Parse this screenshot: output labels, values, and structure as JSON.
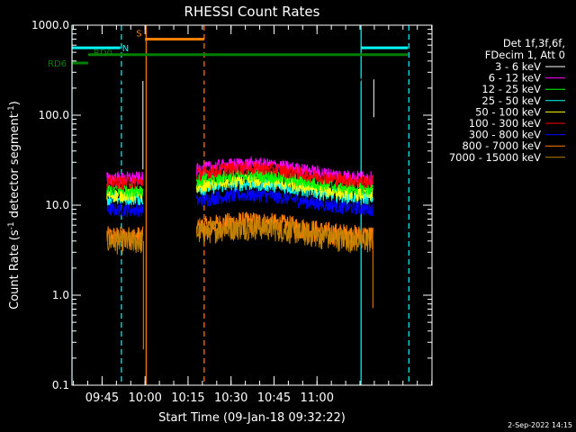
{
  "chart_data": {
    "type": "line",
    "title": "RHESSI Count Rates",
    "xlabel": "Start Time (09-Jan-18 09:32:22)",
    "ylabel_main": "Count Rate (s",
    "ylabel_sup1": "-1",
    "ylabel_mid": " detector segment",
    "ylabel_sup2": "-1",
    "ylabel_end": ")",
    "yscale": "log",
    "ylim": [
      0.1,
      1000
    ],
    "xlim_minutes": [
      0,
      67
    ],
    "x_ticks": [
      {
        "m": 5.6,
        "label": "09:45"
      },
      {
        "m": 13.6,
        "label": "10:00"
      },
      {
        "m": 21.6,
        "label": "10:15"
      },
      {
        "m": 29.6,
        "label": "10:30"
      },
      {
        "m": 37.6,
        "label": "10:45"
      },
      {
        "m": 45.6,
        "label": "11:00"
      }
    ],
    "y_ticks": [
      {
        "v": 0.1,
        "label": "0.1"
      },
      {
        "v": 1,
        "label": "1.0"
      },
      {
        "v": 10,
        "label": "10.0"
      },
      {
        "v": 100,
        "label": "100.0"
      },
      {
        "v": 1000,
        "label": "1000.0"
      }
    ],
    "legend_header": [
      "Det 1f,3f,6f,",
      "FDecim 1, Att 0"
    ],
    "series": [
      {
        "name": "3 - 6 keV",
        "color": "#000000",
        "level": 250
      },
      {
        "name": "6 - 12 keV",
        "color": "#ff00ff",
        "level": 20
      },
      {
        "name": "12 - 25 keV",
        "color": "#00ff00",
        "level": 15
      },
      {
        "name": "25 - 50 keV",
        "color": "#00ffff",
        "level": 12
      },
      {
        "name": "50 - 100 keV",
        "color": "#ffff00",
        "level": 13
      },
      {
        "name": "100 - 300 keV",
        "color": "#ff0000",
        "level": 18
      },
      {
        "name": "300 - 800 keV",
        "color": "#0000ff",
        "level": 9
      },
      {
        "name": "800 - 7000 keV",
        "color": "#ff8000",
        "level": 4.5
      },
      {
        "name": "7000 - 15000 keV",
        "color": "#c08000",
        "level": 4
      }
    ],
    "segments_minutes": [
      [
        6.5,
        13.2
      ],
      [
        23.2,
        56
      ]
    ],
    "flags": [
      {
        "label": "N",
        "color": "#00ffff",
        "level": 560,
        "spans": [
          [
            0,
            9
          ],
          [
            53.8,
            62.5
          ]
        ]
      },
      {
        "label": "S",
        "color": "#ff8000",
        "level": 700,
        "spans": [
          [
            13.6,
            24.6
          ]
        ]
      },
      {
        "label": "RD0",
        "color": "#008000",
        "level": 470,
        "spans": [
          [
            3,
            62.5
          ]
        ]
      },
      {
        "label": "RD6",
        "color": "#008000",
        "level": 380,
        "spans": [
          [
            0,
            3
          ]
        ]
      }
    ],
    "vlines": [
      {
        "m": 0,
        "color": "#00ffff",
        "style": "solid"
      },
      {
        "m": 9.2,
        "color": "#00ffff",
        "style": "dashed"
      },
      {
        "m": 13.8,
        "color": "#ff8000",
        "style": "solid"
      },
      {
        "m": 24.6,
        "color": "#ff8000",
        "style": "dashed"
      },
      {
        "m": 53.8,
        "color": "#00ffff",
        "style": "solid"
      },
      {
        "m": 62.7,
        "color": "#00ffff",
        "style": "dashed"
      }
    ],
    "footer": "2-Sep-2022 14:15"
  }
}
